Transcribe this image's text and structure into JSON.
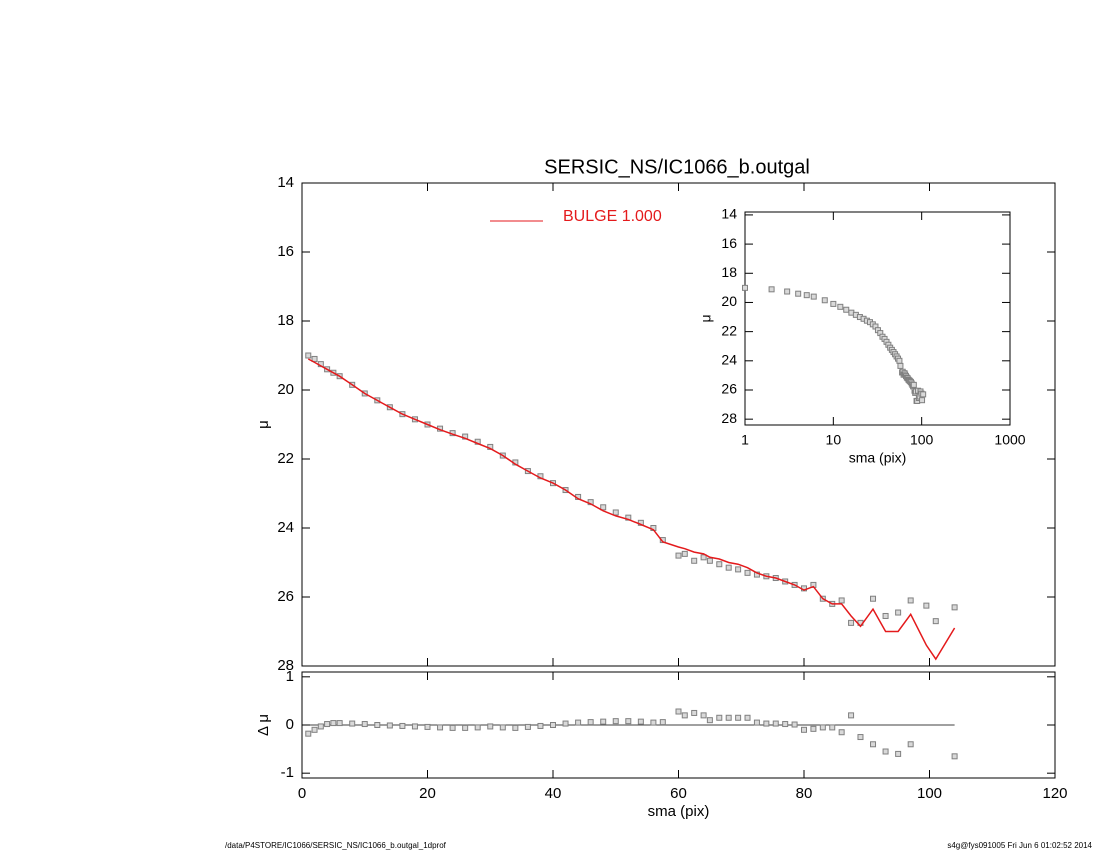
{
  "chart_data": [
    {
      "type": "profile",
      "title": "SERSIC_NS/IC1066_b.outgal",
      "ylabel": "μ",
      "x": [
        1,
        2,
        3,
        4,
        5,
        6,
        8,
        10,
        12,
        14,
        16,
        18,
        20,
        22,
        24,
        26,
        28,
        30,
        32,
        34,
        36,
        38,
        40,
        42,
        44,
        46,
        48,
        50,
        52,
        54,
        56,
        57.5,
        60,
        61,
        62.5,
        64,
        65,
        66.5,
        68,
        69.5,
        71,
        72.5,
        74,
        75.5,
        77,
        78.5,
        80,
        81.5,
        83,
        84.5,
        86,
        87.5,
        89,
        91,
        93,
        95,
        97,
        99.5,
        101,
        104
      ],
      "observed": [
        19.0,
        19.1,
        19.25,
        19.4,
        19.5,
        19.6,
        19.85,
        20.1,
        20.3,
        20.5,
        20.7,
        20.85,
        21.0,
        21.12,
        21.25,
        21.35,
        21.5,
        21.65,
        21.9,
        22.1,
        22.35,
        22.5,
        22.7,
        22.9,
        23.1,
        23.25,
        23.4,
        23.55,
        23.7,
        23.85,
        24.0,
        24.35,
        24.8,
        24.75,
        24.95,
        24.85,
        24.95,
        25.05,
        25.15,
        25.2,
        25.3,
        25.35,
        25.4,
        25.45,
        25.55,
        25.65,
        25.75,
        25.65,
        26.05,
        26.2,
        26.1,
        26.75,
        26.75,
        26.05,
        26.55,
        26.45,
        26.1,
        26.25,
        26.7,
        26.3
      ],
      "marker_color": "#808080",
      "series": [
        {
          "name": "BULGE  1.000",
          "color": "#e41a1c",
          "values": [
            19.1,
            19.2,
            19.3,
            19.4,
            19.5,
            19.6,
            19.85,
            20.1,
            20.3,
            20.5,
            20.7,
            20.85,
            21.0,
            21.15,
            21.28,
            21.4,
            21.55,
            21.7,
            21.9,
            22.15,
            22.35,
            22.55,
            22.7,
            22.9,
            23.15,
            23.3,
            23.5,
            23.65,
            23.75,
            23.9,
            24.05,
            24.4,
            24.55,
            24.6,
            24.7,
            24.75,
            24.85,
            24.9,
            25.0,
            25.05,
            25.15,
            25.3,
            25.4,
            25.45,
            25.55,
            25.65,
            25.8,
            25.7,
            26.05,
            26.2,
            26.2,
            26.55,
            26.85,
            26.35,
            27.0,
            27.0,
            26.5,
            27.4,
            27.8,
            26.9
          ]
        }
      ],
      "xlim": [
        0,
        120
      ],
      "xticks": [
        0,
        20,
        40,
        60,
        80,
        100,
        120
      ],
      "ylim": [
        28,
        14
      ],
      "yticks": [
        14,
        16,
        18,
        20,
        22,
        24,
        26,
        28
      ]
    },
    {
      "type": "residual",
      "ylabel": "Δ μ",
      "xlabel": "sma (pix)",
      "x": [
        1,
        2,
        3,
        4,
        5,
        6,
        8,
        10,
        12,
        14,
        16,
        18,
        20,
        22,
        24,
        26,
        28,
        30,
        32,
        34,
        36,
        38,
        40,
        42,
        44,
        46,
        48,
        50,
        52,
        54,
        56,
        57.5,
        60,
        61,
        62.5,
        64,
        65,
        66.5,
        68,
        69.5,
        71,
        72.5,
        74,
        75.5,
        77,
        78.5,
        80,
        81.5,
        83,
        84.5,
        86,
        87.5,
        89,
        91,
        93,
        95,
        97,
        99.5,
        101,
        104
      ],
      "values": [
        -0.18,
        -0.1,
        -0.03,
        0.02,
        0.04,
        0.04,
        0.03,
        0.02,
        0.0,
        -0.01,
        -0.02,
        -0.03,
        -0.04,
        -0.05,
        -0.06,
        -0.06,
        -0.05,
        -0.03,
        -0.05,
        -0.06,
        -0.04,
        -0.02,
        0.0,
        0.03,
        0.05,
        0.06,
        0.07,
        0.08,
        0.08,
        0.07,
        0.05,
        0.06,
        0.28,
        0.2,
        0.25,
        0.2,
        0.1,
        0.15,
        0.15,
        0.15,
        0.15,
        0.05,
        0.03,
        0.03,
        0.02,
        0.01,
        -0.1,
        -0.08,
        -0.05,
        -0.05,
        -0.15,
        0.2,
        -0.25,
        -0.4,
        -0.55,
        -0.6,
        -0.4,
        null,
        null,
        -0.65
      ],
      "marker_color": "#808080",
      "xlim": [
        0,
        120
      ],
      "xticks": [
        0,
        20,
        40,
        60,
        80,
        100,
        120
      ],
      "ylim": [
        -1.1,
        1.1
      ],
      "yticks": [
        -1,
        0,
        1
      ]
    },
    {
      "type": "profile-log",
      "ylabel": "μ",
      "xlabel": "sma (pix)",
      "log_x": true,
      "x": [
        1,
        2,
        3,
        4,
        5,
        6,
        8,
        10,
        12,
        14,
        16,
        18,
        20,
        22,
        24,
        26,
        28,
        30,
        32,
        34,
        36,
        38,
        40,
        42,
        44,
        46,
        48,
        50,
        52,
        54,
        56,
        57.5,
        60,
        61,
        62.5,
        64,
        65,
        66.5,
        68,
        69.5,
        71,
        72.5,
        74,
        75.5,
        77,
        78.5,
        80,
        81.5,
        83,
        84.5,
        86,
        87.5,
        89,
        91,
        93,
        95,
        97,
        99.5,
        101,
        104
      ],
      "values": [
        19.0,
        19.1,
        19.25,
        19.4,
        19.5,
        19.6,
        19.85,
        20.1,
        20.3,
        20.5,
        20.7,
        20.85,
        21.0,
        21.12,
        21.25,
        21.35,
        21.5,
        21.65,
        21.9,
        22.1,
        22.35,
        22.5,
        22.7,
        22.9,
        23.1,
        23.25,
        23.4,
        23.55,
        23.7,
        23.85,
        24.0,
        24.35,
        24.8,
        24.75,
        24.95,
        24.85,
        24.95,
        25.05,
        25.15,
        25.2,
        25.3,
        25.35,
        25.4,
        25.45,
        25.55,
        25.65,
        25.75,
        25.65,
        26.05,
        26.2,
        26.1,
        26.75,
        26.75,
        26.05,
        26.55,
        26.45,
        26.1,
        26.25,
        26.7,
        26.3
      ],
      "marker_color": "#808080",
      "xlim": [
        1,
        1000
      ],
      "xticks": [
        1,
        10,
        100,
        1000
      ],
      "ylim": [
        28.4,
        13.8
      ],
      "yticks": [
        14,
        16,
        18,
        20,
        22,
        24,
        26,
        28
      ]
    }
  ],
  "footer": {
    "left": "/data/P4STORE/IC1066/SERSIC_NS/IC1066_b.outgal_1dprof",
    "right": "s4g@fys091005  Fri Jun  6 01:02:52 2014"
  }
}
